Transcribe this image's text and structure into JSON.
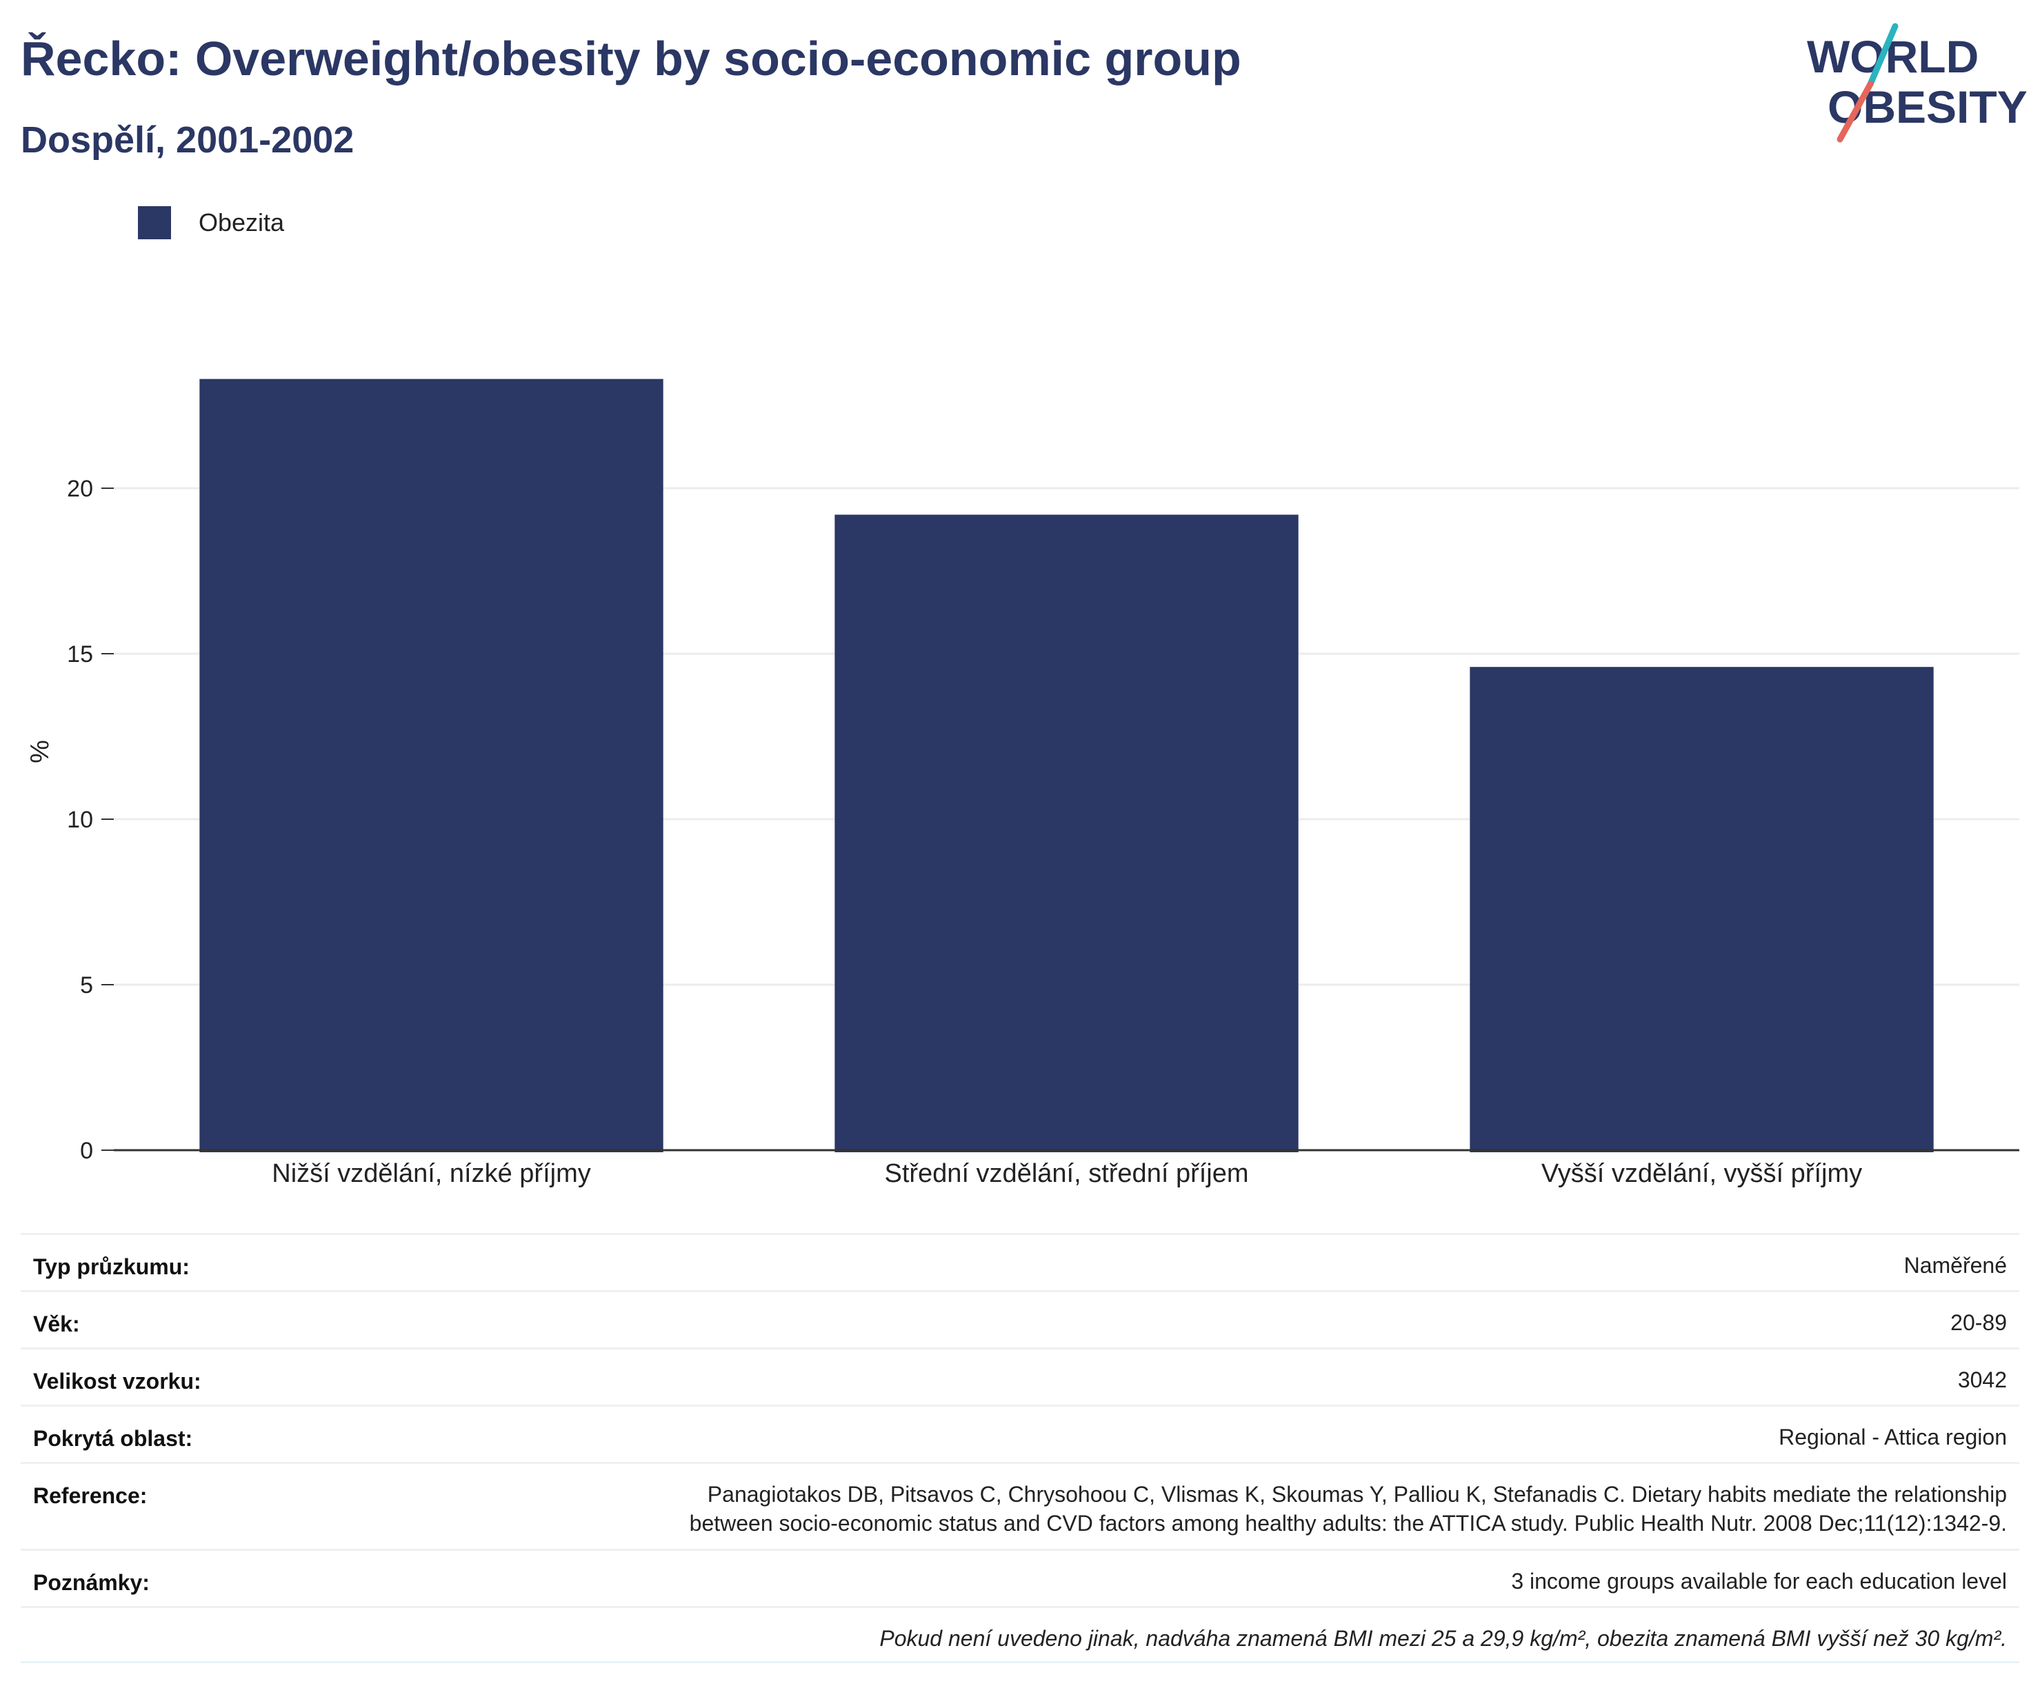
{
  "header": {
    "title": "Řecko: Overweight/obesity by socio-economic group",
    "subtitle": "Dospělí, 2001-2002"
  },
  "logo": {
    "line1": "WORLD",
    "line2": "OBESITY",
    "navy": "#2b3764",
    "teal": "#2bb3c0",
    "coral": "#e5665a"
  },
  "legend": {
    "label": "Obezita",
    "color": "#2b3764"
  },
  "chart_data": {
    "type": "bar",
    "categories": [
      "Nižší vzdělání, nízké příjmy",
      "Střední vzdělání, střední příjem",
      "Vyšší vzdělání, vyšší příjmy"
    ],
    "series": [
      {
        "name": "Obezita",
        "values": [
          23.3,
          19.2,
          14.6
        ],
        "color": "#2b3764"
      }
    ],
    "ylabel": "%",
    "yticks": [
      0,
      5,
      10,
      15,
      20
    ],
    "ylim": [
      0,
      25
    ],
    "grid": true
  },
  "info": {
    "survey_type": {
      "label": "Typ průzkumu:",
      "value": "Naměřené"
    },
    "age": {
      "label": "Věk:",
      "value": "20-89"
    },
    "sample_size": {
      "label": "Velikost vzorku:",
      "value": "3042"
    },
    "coverage": {
      "label": "Pokrytá oblast:",
      "value": "Regional - Attica region"
    },
    "reference": {
      "label": "Reference:",
      "line1": "Panagiotakos DB, Pitsavos C, Chrysohoou C, Vlismas K, Skoumas Y, Palliou K, Stefanadis C. Dietary habits mediate the relationship",
      "line2": "between socio-economic status and CVD factors among healthy adults: the ATTICA study. Public Health Nutr. 2008 Dec;11(12):1342-9."
    },
    "notes": {
      "label": "Poznámky:",
      "value": "3 income groups available for each education level"
    },
    "footnote": "Pokud není uvedeno jinak, nadváha znamená BMI mezi 25 a 29,9 kg/m², obezita znamená BMI vyšší než 30 kg/m²."
  }
}
